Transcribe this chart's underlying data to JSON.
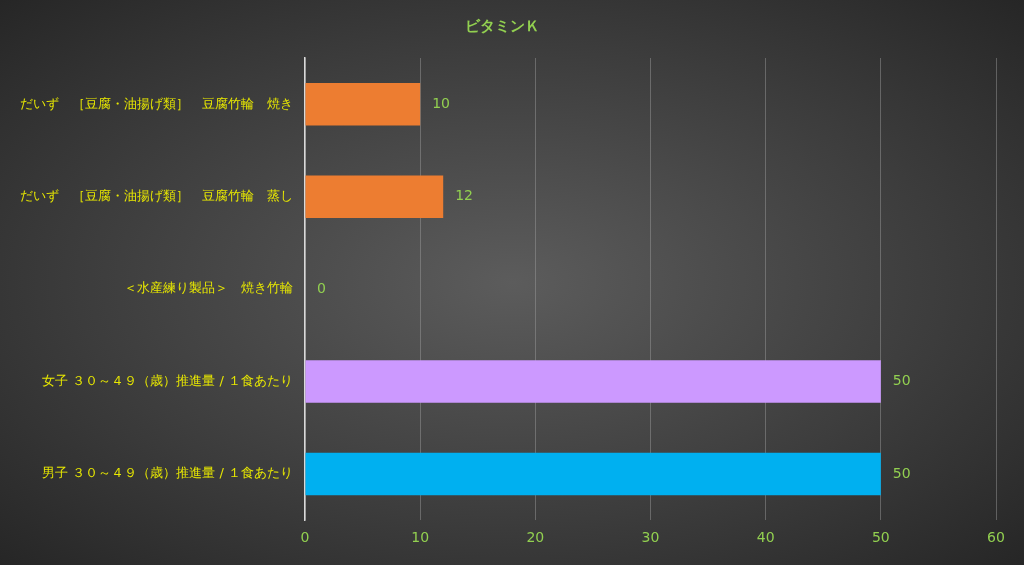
{
  "chart_data": {
    "type": "bar",
    "orientation": "horizontal",
    "title": "ビタミンＫ",
    "categories": [
      "だいず　［豆腐・油揚げ類］　豆腐竹輪　焼き",
      "だいず　［豆腐・油揚げ類］　豆腐竹輪　蒸し",
      "＜水産練り製品＞　焼き竹輪",
      "女子 ３０～４９（歳）推進量 / １食あたり",
      "男子 ３０～４９（歳）推進量 / １食あたり"
    ],
    "values": [
      10,
      12,
      0,
      50,
      50
    ],
    "colors": [
      "#ed7d31",
      "#ed7d31",
      "#ed7d31",
      "#cc99ff",
      "#00b0f0"
    ],
    "xlim": [
      0,
      60
    ],
    "xticks": [
      0,
      10,
      20,
      30,
      40,
      50,
      60
    ],
    "grid": "x",
    "legend": false,
    "data_labels": true
  }
}
